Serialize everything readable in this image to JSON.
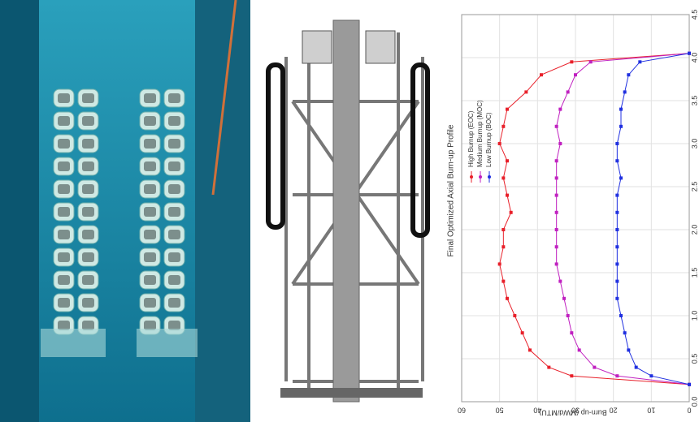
{
  "chart_data": {
    "type": "line",
    "title": "Final Optimized Axial Burn-up Profile",
    "y_label": "Burn-up (MWd/MTU)",
    "x": [
      0.2,
      0.3,
      0.4,
      0.6,
      0.8,
      1.0,
      1.2,
      1.4,
      1.6,
      1.8,
      2.0,
      2.2,
      2.4,
      2.6,
      2.8,
      3.0,
      3.2,
      3.4,
      3.6,
      3.8,
      3.95,
      4.05
    ],
    "series": [
      {
        "name": "High Burnup (EOC)",
        "color": "#e8202a",
        "values": [
          0,
          31,
          37,
          42,
          44,
          46,
          48,
          49,
          50,
          49,
          49,
          47,
          48,
          49,
          48,
          50,
          49,
          48,
          43,
          39,
          31,
          0
        ]
      },
      {
        "name": "Medium Burnup (MOC)",
        "color": "#c020c0",
        "values": [
          0,
          19,
          25,
          29,
          31,
          32,
          33,
          34,
          35,
          35,
          35,
          35,
          35,
          35,
          35,
          34,
          35,
          34,
          32,
          30,
          26,
          0
        ]
      },
      {
        "name": "Low Burnup (BOC)",
        "color": "#2030e0",
        "values": [
          0,
          10,
          14,
          16,
          17,
          18,
          19,
          19,
          19,
          19,
          19,
          19,
          19,
          18,
          19,
          19,
          18,
          18,
          17,
          16,
          13,
          0
        ]
      }
    ],
    "xlim": [
      0,
      4.5
    ],
    "xticks": [
      {
        "value": 0,
        "label": "0.0"
      },
      {
        "value": 0.5,
        "label": "0.5"
      },
      {
        "value": 1,
        "label": "1.0"
      },
      {
        "value": 1.5,
        "label": "1.5"
      },
      {
        "value": 2,
        "label": "2.0"
      },
      {
        "value": 2.5,
        "label": "2.5"
      },
      {
        "value": 3,
        "label": "3.0"
      },
      {
        "value": 3.5,
        "label": "3.5"
      },
      {
        "value": 4,
        "label": "4.0"
      },
      {
        "value": 4.5,
        "label": "4.5"
      }
    ],
    "ylim": [
      0,
      60
    ],
    "yticks": [
      0,
      10,
      20,
      30,
      40,
      50,
      60
    ],
    "grid": true,
    "legend": "top-left"
  }
}
